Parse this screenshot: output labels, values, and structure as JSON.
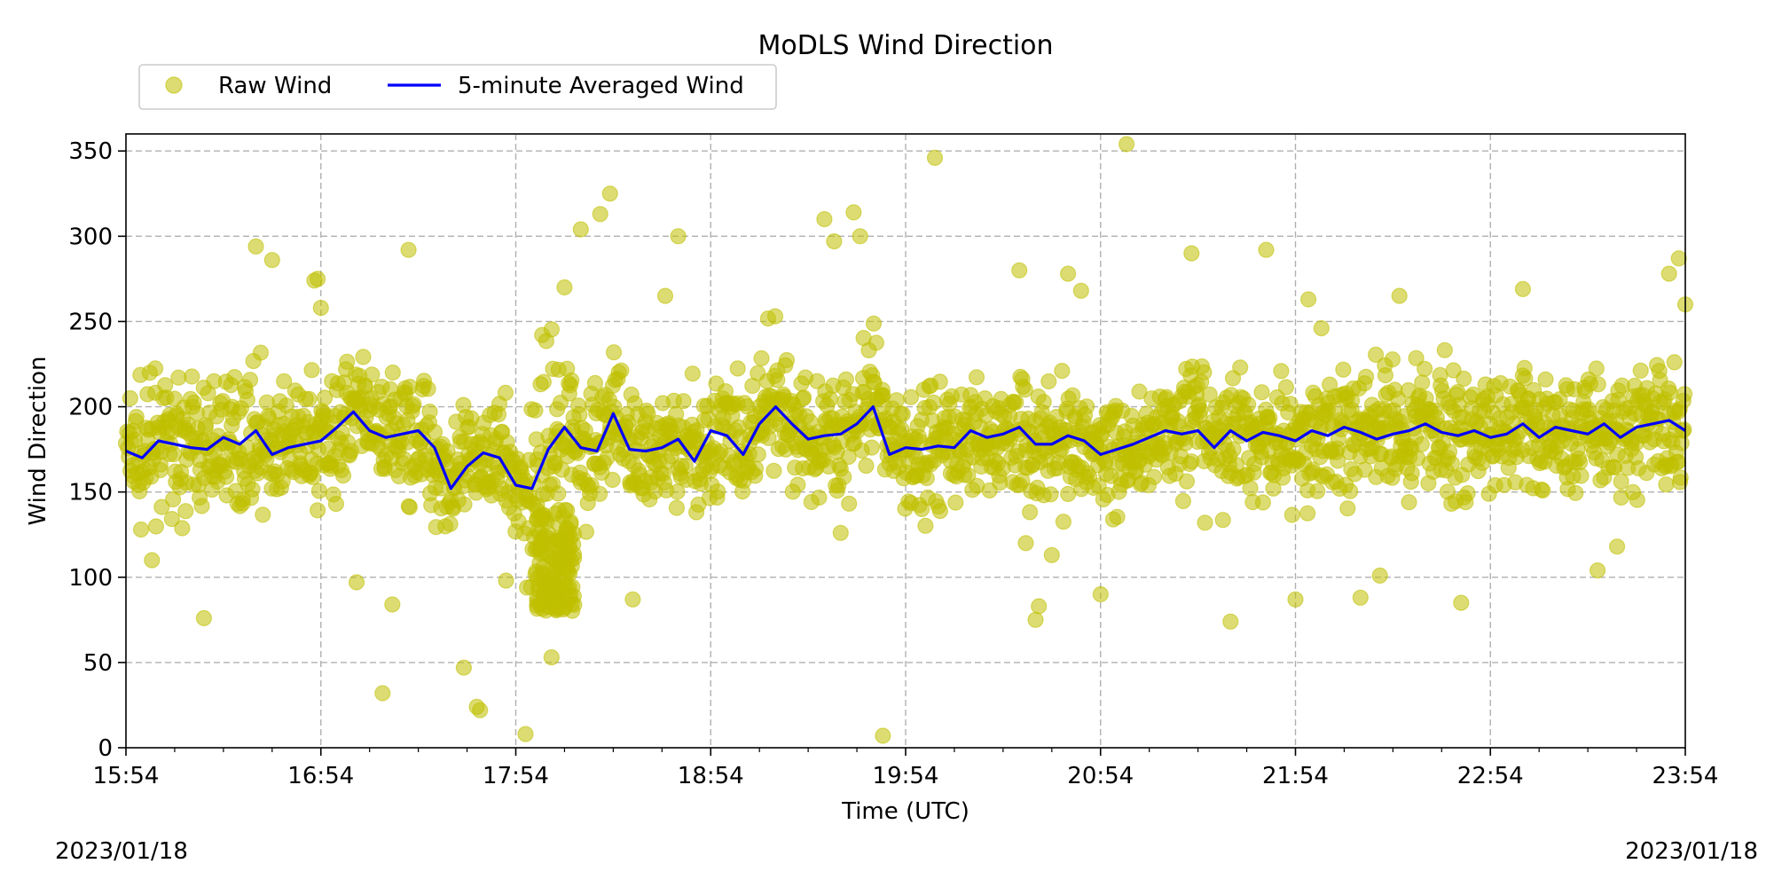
{
  "chart_data": {
    "type": "scatter",
    "title": "MoDLS Wind Direction",
    "xlabel": "Time (UTC)",
    "ylabel": "Wind Direction",
    "date_left": "2023/01/18",
    "date_right": "2023/01/18",
    "x_ticks": [
      "15:54",
      "16:54",
      "17:54",
      "18:54",
      "19:54",
      "20:54",
      "21:54",
      "22:54",
      "23:54"
    ],
    "xlim": [
      "15:54",
      "23:54"
    ],
    "y_ticks": [
      0,
      50,
      100,
      150,
      200,
      250,
      300,
      350
    ],
    "ylim": [
      0,
      360
    ],
    "grid": true,
    "legend_position": "top-left, above plot",
    "colors": {
      "raw": "#bfbf00",
      "avg": "#0000ff",
      "grid": "#b0b0b0"
    },
    "series": [
      {
        "name": "Raw Wind",
        "kind": "scatter",
        "x": [
          "16:02",
          "16:18",
          "16:34",
          "16:39",
          "16:52",
          "16:53",
          "16:54",
          "17:05",
          "17:13",
          "17:16",
          "17:21",
          "17:38",
          "17:42",
          "17:43",
          "17:51",
          "17:57",
          "18:05",
          "18:09",
          "18:11",
          "18:14",
          "18:20",
          "18:23",
          "18:30",
          "18:40",
          "18:44",
          "19:29",
          "19:32",
          "19:34",
          "19:38",
          "19:40",
          "19:47",
          "20:03",
          "20:29",
          "20:31",
          "20:34",
          "20:35",
          "20:39",
          "20:44",
          "20:48",
          "20:54",
          "21:02",
          "21:22",
          "21:34",
          "21:45",
          "21:54",
          "21:58",
          "22:02",
          "22:14",
          "22:20",
          "22:26",
          "22:45",
          "23:04",
          "23:27",
          "23:33",
          "23:49",
          "23:52",
          "23:54"
        ],
        "y": [
          110,
          76,
          294,
          286,
          274,
          275,
          258,
          97,
          32,
          84,
          292,
          47,
          24,
          22,
          98,
          8,
          53,
          270,
          110,
          304,
          313,
          325,
          87,
          265,
          300,
          310,
          297,
          126,
          314,
          300,
          7,
          346,
          280,
          120,
          75,
          83,
          113,
          278,
          268,
          90,
          354,
          290,
          74,
          292,
          87,
          263,
          246,
          88,
          101,
          265,
          85,
          269,
          104,
          118,
          278,
          287,
          260
        ]
      },
      {
        "name": "5-minute Averaged Wind",
        "kind": "line",
        "x": [
          "15:54",
          "15:59",
          "16:04",
          "16:09",
          "16:14",
          "16:19",
          "16:24",
          "16:29",
          "16:34",
          "16:39",
          "16:44",
          "16:49",
          "16:54",
          "16:59",
          "17:04",
          "17:09",
          "17:14",
          "17:19",
          "17:24",
          "17:29",
          "17:34",
          "17:39",
          "17:44",
          "17:49",
          "17:54",
          "17:59",
          "18:04",
          "18:09",
          "18:14",
          "18:19",
          "18:24",
          "18:29",
          "18:34",
          "18:39",
          "18:44",
          "18:49",
          "18:54",
          "18:59",
          "19:04",
          "19:09",
          "19:14",
          "19:19",
          "19:24",
          "19:29",
          "19:34",
          "19:39",
          "19:44",
          "19:49",
          "19:54",
          "19:59",
          "20:04",
          "20:09",
          "20:14",
          "20:19",
          "20:24",
          "20:29",
          "20:34",
          "20:39",
          "20:44",
          "20:49",
          "20:54",
          "20:59",
          "21:04",
          "21:09",
          "21:14",
          "21:19",
          "21:24",
          "21:29",
          "21:34",
          "21:39",
          "21:44",
          "21:49",
          "21:54",
          "21:59",
          "22:04",
          "22:09",
          "22:14",
          "22:19",
          "22:24",
          "22:29",
          "22:34",
          "22:39",
          "22:44",
          "22:49",
          "22:54",
          "22:59",
          "23:04",
          "23:09",
          "23:14",
          "23:19",
          "23:24",
          "23:29",
          "23:34",
          "23:39",
          "23:44",
          "23:49",
          "23:54"
        ],
        "y": [
          174,
          170,
          180,
          178,
          176,
          175,
          182,
          178,
          186,
          172,
          176,
          178,
          180,
          188,
          197,
          186,
          182,
          184,
          186,
          176,
          152,
          165,
          173,
          170,
          154,
          152,
          175,
          188,
          176,
          174,
          196,
          175,
          174,
          176,
          181,
          168,
          186,
          183,
          172,
          190,
          200,
          190,
          181,
          183,
          184,
          190,
          200,
          172,
          176,
          175,
          177,
          176,
          186,
          182,
          184,
          188,
          178,
          178,
          183,
          180,
          172,
          175,
          178,
          182,
          186,
          184,
          186,
          176,
          186,
          180,
          185,
          183,
          180,
          186,
          183,
          188,
          185,
          181,
          184,
          186,
          190,
          185,
          183,
          186,
          182,
          184,
          190,
          182,
          188,
          186,
          184,
          190,
          182,
          188,
          190,
          192,
          186
        ]
      }
    ]
  }
}
